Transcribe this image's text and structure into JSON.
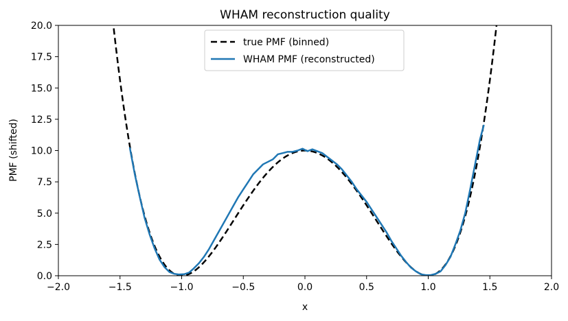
{
  "chart_data": {
    "type": "line",
    "title": "WHAM reconstruction quality",
    "xlabel": "x",
    "ylabel": "PMF (shifted)",
    "xlim": [
      -2.0,
      2.0
    ],
    "ylim": [
      0.0,
      20.0
    ],
    "xticks": [
      "−2.0",
      "−1.5",
      "−1.0",
      "−0.5",
      "0.0",
      "0.5",
      "1.0",
      "1.5",
      "2.0"
    ],
    "xtick_values": [
      -2.0,
      -1.5,
      -1.0,
      -0.5,
      0.0,
      0.5,
      1.0,
      1.5,
      2.0
    ],
    "yticks": [
      "0.0",
      "2.5",
      "5.0",
      "7.5",
      "10.0",
      "12.5",
      "15.0",
      "17.5",
      "20.0"
    ],
    "ytick_values": [
      0.0,
      2.5,
      5.0,
      7.5,
      10.0,
      12.5,
      15.0,
      17.5,
      20.0
    ],
    "legend_position": "top-center",
    "series": [
      {
        "name": "true PMF (binned)",
        "style": "dashed",
        "color": "#000000",
        "function": "10*(x^2-1)^2",
        "x_range": [
          -1.6,
          1.6
        ],
        "step": 0.01
      },
      {
        "name": "WHAM PMF (reconstructed)",
        "style": "solid",
        "color": "#1f77b4",
        "x": [
          -1.42,
          -1.38,
          -1.34,
          -1.3,
          -1.26,
          -1.22,
          -1.18,
          -1.14,
          -1.1,
          -1.06,
          -1.02,
          -0.98,
          -0.94,
          -0.9,
          -0.86,
          -0.82,
          -0.78,
          -0.74,
          -0.7,
          -0.66,
          -0.62,
          -0.58,
          -0.54,
          -0.5,
          -0.46,
          -0.42,
          -0.38,
          -0.34,
          -0.3,
          -0.26,
          -0.22,
          -0.18,
          -0.14,
          -0.1,
          -0.06,
          -0.02,
          0.02,
          0.06,
          0.1,
          0.14,
          0.18,
          0.22,
          0.26,
          0.3,
          0.34,
          0.38,
          0.42,
          0.46,
          0.5,
          0.54,
          0.58,
          0.62,
          0.66,
          0.7,
          0.74,
          0.78,
          0.82,
          0.86,
          0.9,
          0.94,
          0.98,
          1.02,
          1.06,
          1.1,
          1.14,
          1.18,
          1.22,
          1.26,
          1.3,
          1.34,
          1.38,
          1.42,
          1.45
        ],
        "y": [
          10.2,
          8.1,
          6.3,
          4.6,
          3.3,
          2.2,
          1.3,
          0.7,
          0.3,
          0.15,
          0.1,
          0.12,
          0.25,
          0.6,
          1.0,
          1.5,
          2.1,
          2.8,
          3.5,
          4.2,
          4.9,
          5.6,
          6.3,
          6.9,
          7.5,
          8.1,
          8.5,
          8.9,
          9.1,
          9.3,
          9.7,
          9.8,
          9.9,
          9.9,
          10.0,
          10.15,
          9.95,
          10.1,
          9.95,
          9.8,
          9.5,
          9.2,
          8.9,
          8.5,
          8.0,
          7.5,
          6.9,
          6.4,
          5.9,
          5.3,
          4.7,
          4.1,
          3.5,
          2.8,
          2.2,
          1.6,
          1.1,
          0.65,
          0.35,
          0.12,
          0.05,
          0.05,
          0.15,
          0.35,
          0.85,
          1.5,
          2.5,
          3.6,
          5.0,
          6.9,
          8.9,
          10.9,
          12.0
        ]
      }
    ]
  }
}
